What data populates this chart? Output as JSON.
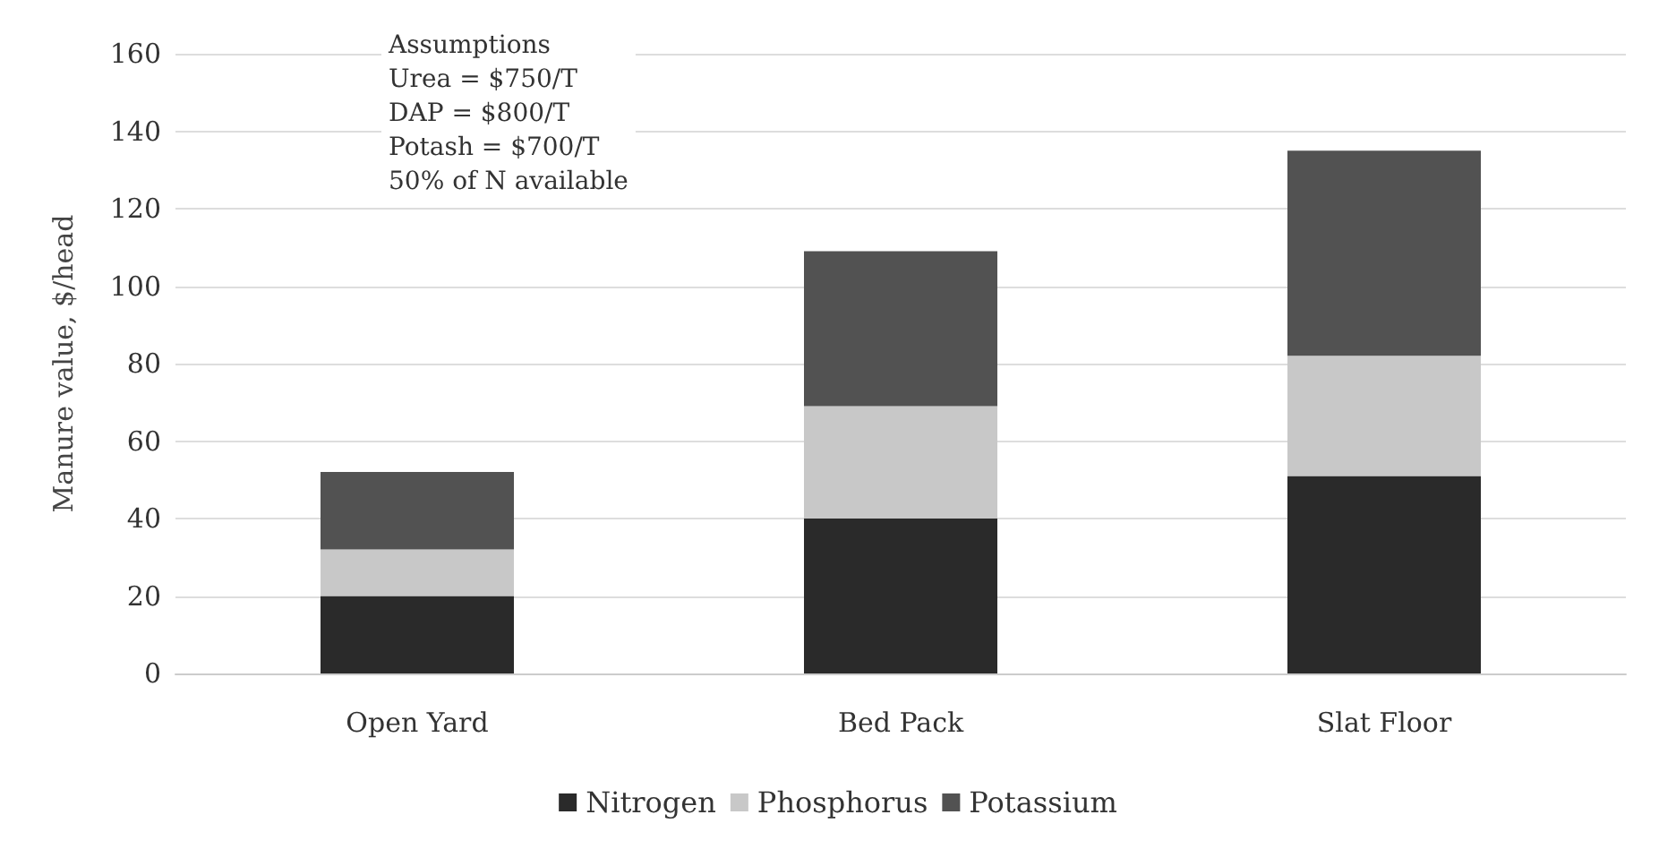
{
  "chart_data": {
    "type": "bar",
    "stacked": true,
    "ylabel": "Manure value, $/head",
    "categories": [
      "Open Yard",
      "Bed Pack",
      "Slat Floor"
    ],
    "series": [
      {
        "name": "Nitrogen",
        "color": "#2a2a2a",
        "values": [
          20,
          40,
          51
        ]
      },
      {
        "name": "Phosphorus",
        "color": "#c8c8c8",
        "values": [
          12,
          29,
          31
        ]
      },
      {
        "name": "Potassium",
        "color": "#525252",
        "values": [
          20,
          40,
          53
        ]
      }
    ],
    "ylim": [
      0,
      160
    ],
    "yticks": [
      0,
      20,
      40,
      60,
      80,
      100,
      120,
      140,
      160
    ],
    "grid": "y",
    "legend": "bottom",
    "annotations": [
      "Assumptions\nUrea = $750/T\nDAP = $800/T\nPotash = $700/T\n50% of N available"
    ]
  }
}
